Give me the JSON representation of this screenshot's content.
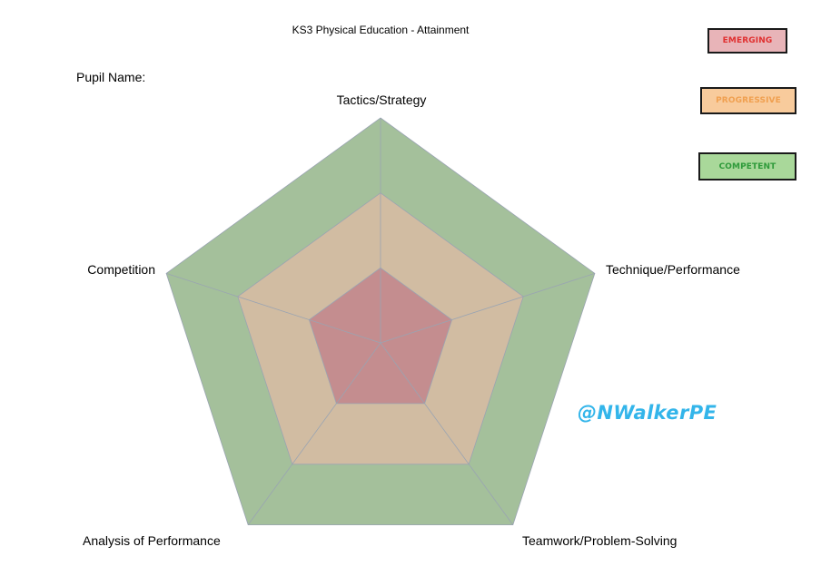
{
  "chart_data": {
    "type": "radar",
    "title": "KS3 Physical Education - Attainment",
    "axes": [
      "Tactics/Strategy",
      "Technique/Performance",
      "Teamwork/Problem-Solving",
      "Analysis of Performance",
      "Competition"
    ],
    "series": [
      {
        "name": "COMPETENT",
        "values": [
          3,
          3,
          3,
          3,
          3
        ],
        "color": "#a4c09b"
      },
      {
        "name": "PROGRESSIVE",
        "values": [
          2,
          2,
          2,
          2,
          2
        ],
        "color": "#d1bca2"
      },
      {
        "name": "EMERGING",
        "values": [
          1,
          1,
          1,
          1,
          1
        ],
        "color": "#c48d8f"
      }
    ],
    "rlim": [
      0,
      3
    ],
    "legend_position": "top-right",
    "grid": true
  },
  "header": {
    "pupil_name_label": "Pupil Name:"
  },
  "legend": {
    "emerging": {
      "label": "EMERGING",
      "fill": "#e8b4b8",
      "text_color": "#e03030"
    },
    "progressive": {
      "label": "PROGRESSIVE",
      "fill": "#f8cb9c",
      "text_color": "#f0a050"
    },
    "competent": {
      "label": "COMPETENT",
      "fill": "#a9d89a",
      "text_color": "#2e9a3a"
    }
  },
  "watermark": {
    "text": "@NWalkerPE",
    "color": "#33b5ea"
  }
}
